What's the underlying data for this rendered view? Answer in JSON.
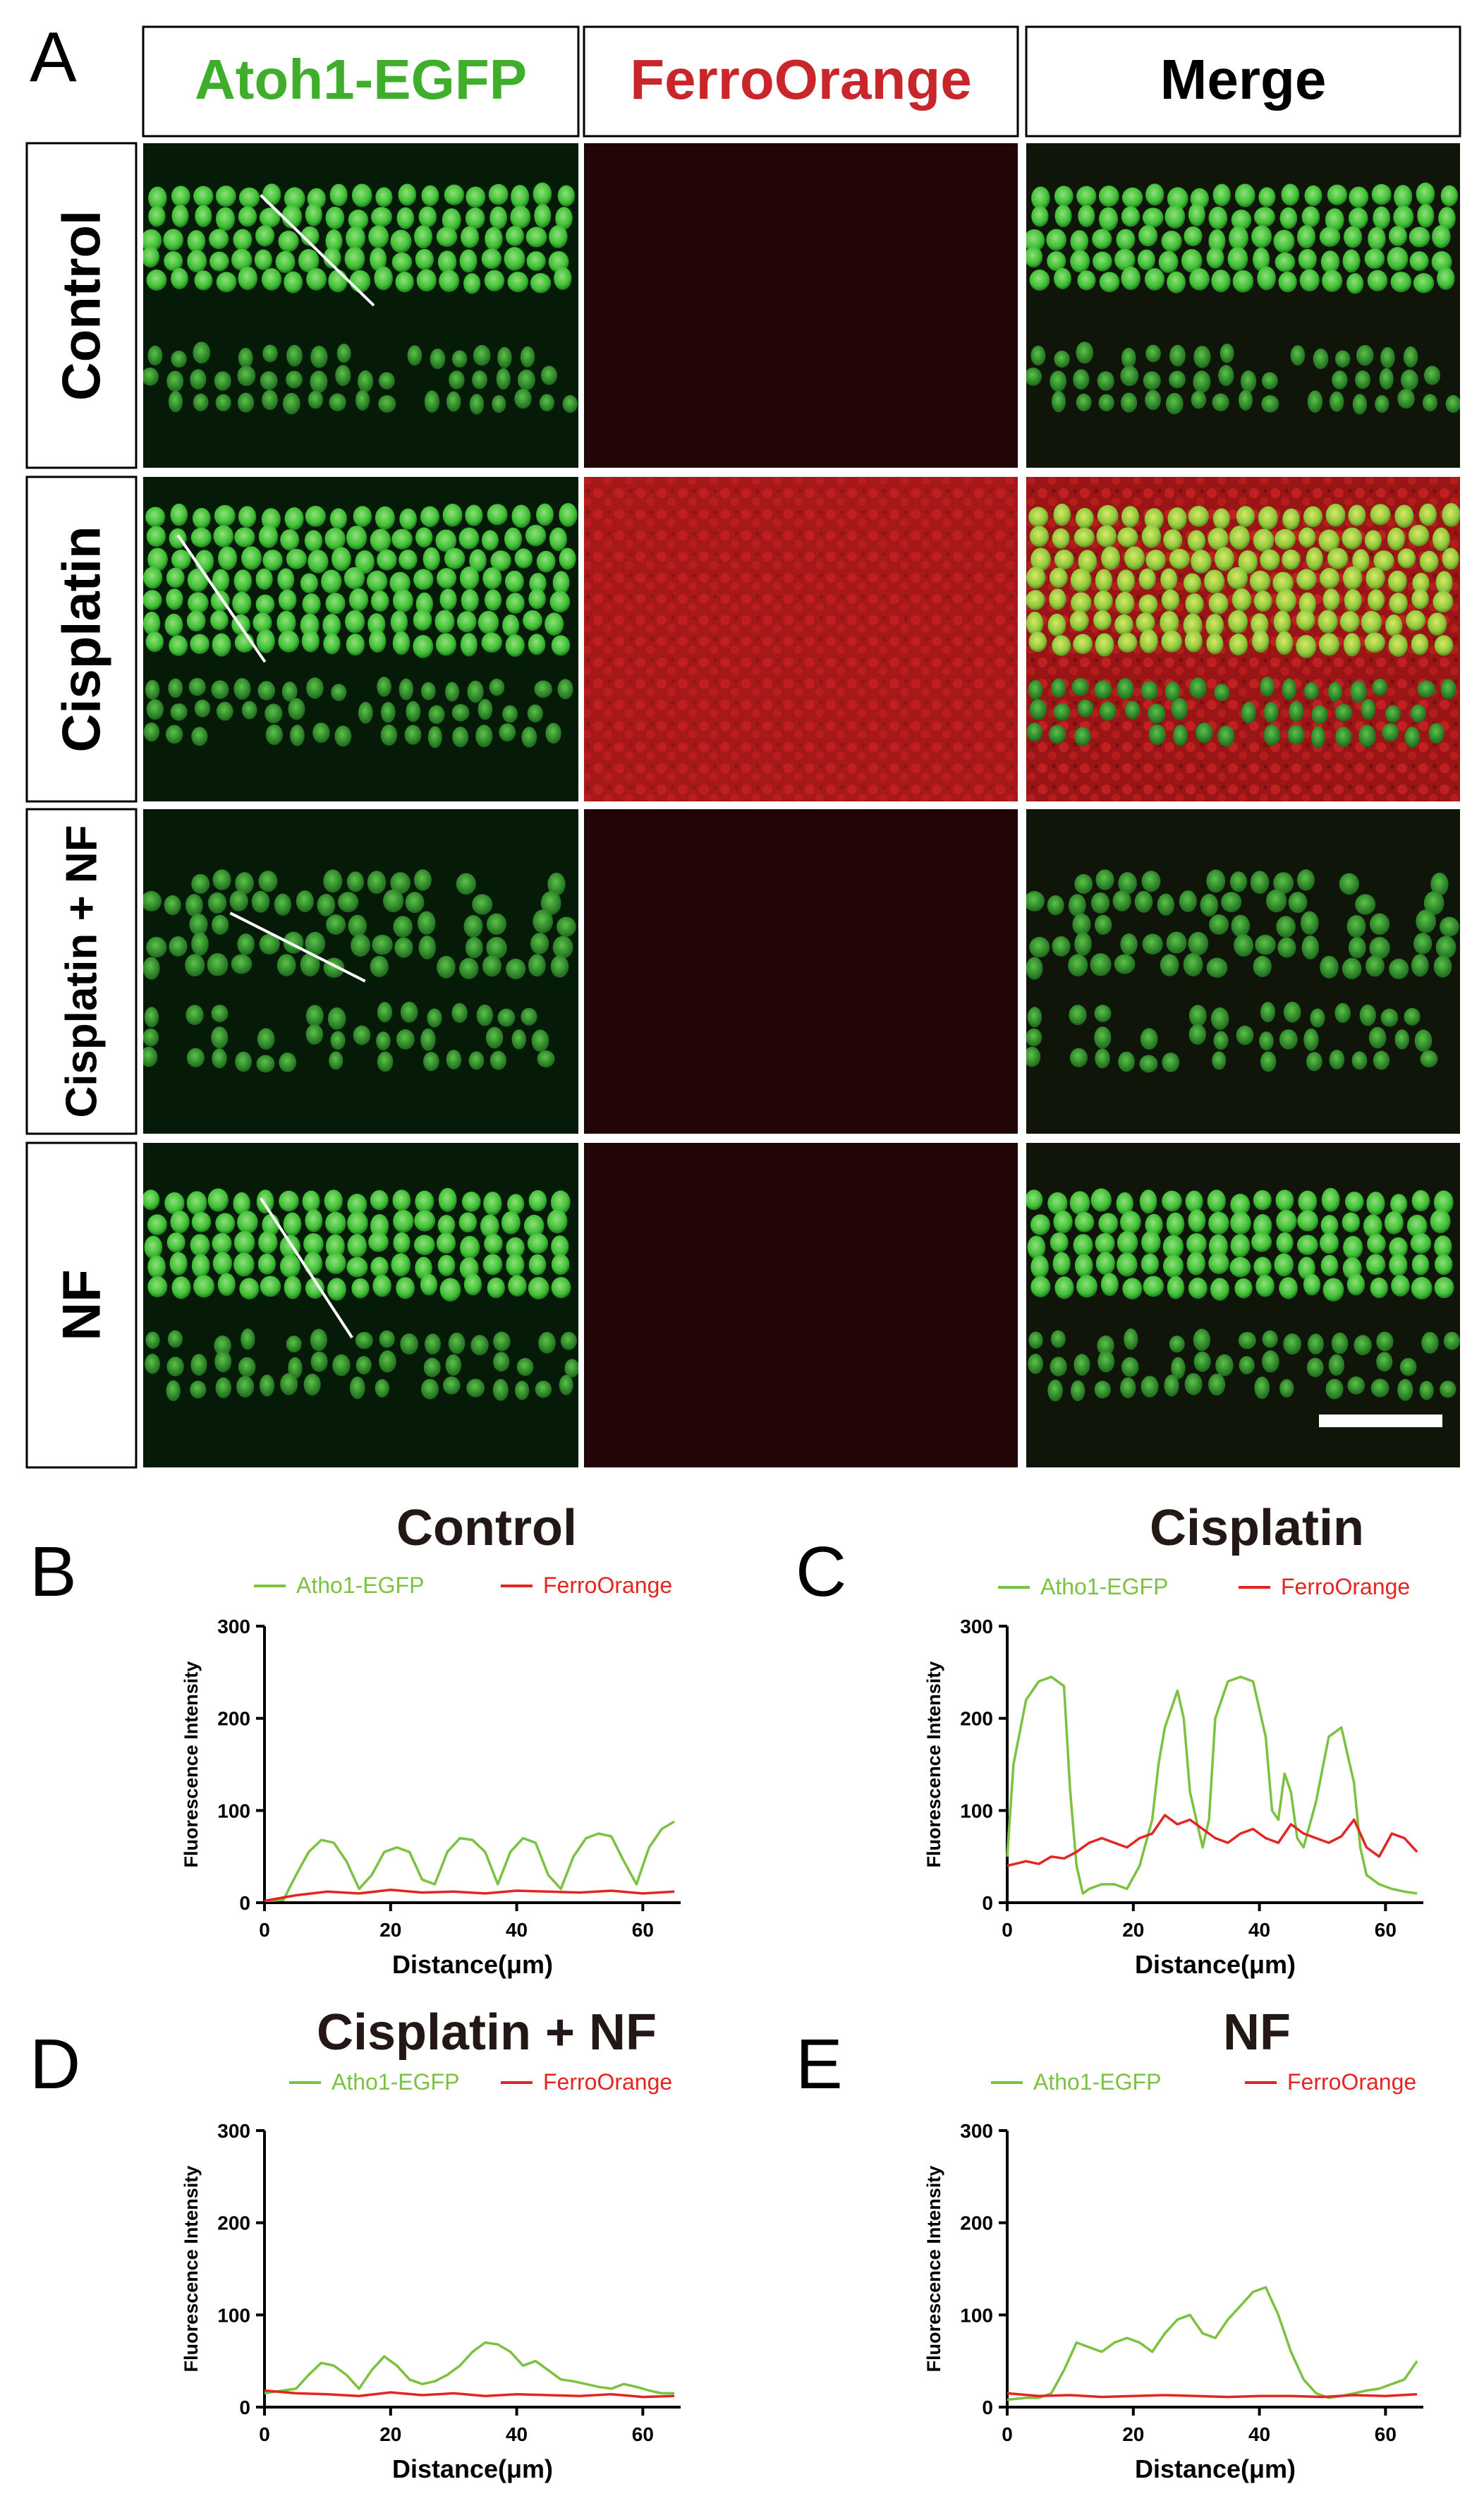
{
  "panel_letters": [
    "A",
    "B",
    "C",
    "D",
    "E"
  ],
  "column_headers": [
    {
      "text": "Atoh1-EGFP",
      "color": "#3fae2a"
    },
    {
      "text": "FerroOrange",
      "color": "#c8262b"
    },
    {
      "text": "Merge",
      "color": "#000000"
    }
  ],
  "row_labels": [
    "Control",
    "Cisplatin",
    "Cisplatin + NF",
    "NF"
  ],
  "colors": {
    "green": "#6cbf3a",
    "red": "#e0282a",
    "line_green": "#7cc242",
    "line_red": "#e32622"
  },
  "chart_data": [
    {
      "panel": "B",
      "type": "line",
      "title": "Control",
      "xlabel": "Distance(μm)",
      "ylabel": "Fluorescence Intensity",
      "xlim": [
        0,
        66
      ],
      "ylim": [
        0,
        300
      ],
      "xticks": [
        0,
        20,
        40,
        60
      ],
      "yticks": [
        0,
        100,
        200,
        300
      ],
      "legend_position": "top",
      "series": [
        {
          "name": "Atho1-EGFP",
          "color": "#7cc242",
          "x": [
            0,
            3,
            5,
            7,
            9,
            11,
            13,
            15,
            17,
            19,
            21,
            23,
            25,
            27,
            29,
            31,
            33,
            35,
            37,
            39,
            41,
            43,
            45,
            47,
            49,
            51,
            53,
            55,
            57,
            59,
            61,
            63,
            65
          ],
          "y": [
            2,
            3,
            30,
            55,
            68,
            65,
            45,
            15,
            30,
            55,
            60,
            55,
            25,
            20,
            55,
            70,
            68,
            55,
            20,
            55,
            70,
            65,
            30,
            15,
            50,
            70,
            75,
            72,
            45,
            20,
            60,
            80,
            88
          ]
        },
        {
          "name": "FerroOrange",
          "color": "#e32622",
          "x": [
            0,
            5,
            10,
            15,
            20,
            25,
            30,
            35,
            40,
            45,
            50,
            55,
            60,
            65
          ],
          "y": [
            2,
            8,
            12,
            10,
            14,
            11,
            12,
            10,
            13,
            12,
            11,
            13,
            10,
            12
          ]
        }
      ]
    },
    {
      "panel": "C",
      "type": "line",
      "title": "Cisplatin",
      "xlabel": "Distance(μm)",
      "ylabel": "Fluorescence Intensity",
      "xlim": [
        0,
        66
      ],
      "ylim": [
        0,
        300
      ],
      "xticks": [
        0,
        20,
        40,
        60
      ],
      "yticks": [
        0,
        100,
        200,
        300
      ],
      "legend_position": "top",
      "series": [
        {
          "name": "Atho1-EGFP",
          "color": "#7cc242",
          "x": [
            0,
            1,
            3,
            5,
            7,
            9,
            10,
            11,
            12,
            13,
            15,
            17,
            19,
            21,
            23,
            24,
            25,
            27,
            28,
            29,
            31,
            32,
            33,
            35,
            37,
            39,
            41,
            42,
            43,
            44,
            45,
            46,
            47,
            49,
            51,
            53,
            55,
            56,
            57,
            59,
            61,
            63,
            65
          ],
          "y": [
            50,
            150,
            220,
            240,
            245,
            235,
            120,
            40,
            10,
            15,
            20,
            20,
            15,
            40,
            90,
            150,
            190,
            230,
            200,
            120,
            60,
            90,
            200,
            240,
            245,
            240,
            180,
            100,
            90,
            140,
            120,
            70,
            60,
            110,
            180,
            190,
            130,
            60,
            30,
            20,
            15,
            12,
            10
          ]
        },
        {
          "name": "FerroOrange",
          "color": "#e32622",
          "x": [
            0,
            3,
            5,
            7,
            9,
            11,
            13,
            15,
            17,
            19,
            21,
            23,
            25,
            27,
            29,
            31,
            33,
            35,
            37,
            39,
            41,
            43,
            45,
            47,
            49,
            51,
            53,
            55,
            57,
            59,
            61,
            63,
            65
          ],
          "y": [
            40,
            45,
            42,
            50,
            48,
            55,
            65,
            70,
            65,
            60,
            70,
            75,
            95,
            85,
            90,
            80,
            70,
            65,
            75,
            80,
            70,
            65,
            85,
            75,
            70,
            65,
            72,
            90,
            60,
            50,
            75,
            70,
            55
          ]
        }
      ]
    },
    {
      "panel": "D",
      "type": "line",
      "title": "Cisplatin + NF",
      "xlabel": "Distance(μm)",
      "ylabel": "Fluorescence Intensity",
      "xlim": [
        0,
        66
      ],
      "ylim": [
        0,
        300
      ],
      "xticks": [
        0,
        20,
        40,
        60
      ],
      "yticks": [
        0,
        100,
        200,
        300
      ],
      "legend_position": "top",
      "series": [
        {
          "name": "Atho1-EGFP",
          "color": "#7cc242",
          "x": [
            0,
            3,
            5,
            7,
            9,
            11,
            13,
            15,
            17,
            19,
            21,
            23,
            25,
            27,
            29,
            31,
            33,
            35,
            37,
            39,
            41,
            43,
            45,
            47,
            49,
            51,
            53,
            55,
            57,
            59,
            61,
            63,
            65
          ],
          "y": [
            15,
            18,
            20,
            35,
            48,
            45,
            35,
            20,
            40,
            55,
            45,
            30,
            25,
            28,
            35,
            45,
            60,
            70,
            68,
            60,
            45,
            50,
            40,
            30,
            28,
            25,
            22,
            20,
            25,
            22,
            18,
            15,
            15
          ]
        },
        {
          "name": "FerroOrange",
          "color": "#e32622",
          "x": [
            0,
            5,
            10,
            15,
            20,
            25,
            30,
            35,
            40,
            45,
            50,
            55,
            60,
            65
          ],
          "y": [
            18,
            15,
            14,
            12,
            16,
            13,
            15,
            12,
            14,
            13,
            12,
            14,
            11,
            12
          ]
        }
      ]
    },
    {
      "panel": "E",
      "type": "line",
      "title": "NF",
      "xlabel": "Distance(μm)",
      "ylabel": "Fluorescence Intensity",
      "xlim": [
        0,
        66
      ],
      "ylim": [
        0,
        300
      ],
      "xticks": [
        0,
        20,
        40,
        60
      ],
      "yticks": [
        0,
        100,
        200,
        300
      ],
      "legend_position": "top",
      "series": [
        {
          "name": "Atho1-EGFP",
          "color": "#7cc242",
          "x": [
            0,
            3,
            5,
            7,
            9,
            11,
            13,
            15,
            17,
            19,
            21,
            23,
            25,
            27,
            29,
            31,
            33,
            35,
            37,
            39,
            41,
            43,
            45,
            47,
            49,
            51,
            53,
            55,
            57,
            59,
            61,
            63,
            65
          ],
          "y": [
            8,
            10,
            10,
            15,
            40,
            70,
            65,
            60,
            70,
            75,
            70,
            60,
            80,
            95,
            100,
            80,
            75,
            95,
            110,
            125,
            130,
            100,
            60,
            30,
            15,
            10,
            12,
            15,
            18,
            20,
            25,
            30,
            50
          ]
        },
        {
          "name": "FerroOrange",
          "color": "#e32622",
          "x": [
            0,
            5,
            10,
            15,
            20,
            25,
            30,
            35,
            40,
            45,
            50,
            55,
            60,
            65
          ],
          "y": [
            15,
            12,
            13,
            11,
            12,
            13,
            12,
            11,
            12,
            12,
            11,
            13,
            12,
            14
          ]
        }
      ]
    }
  ]
}
